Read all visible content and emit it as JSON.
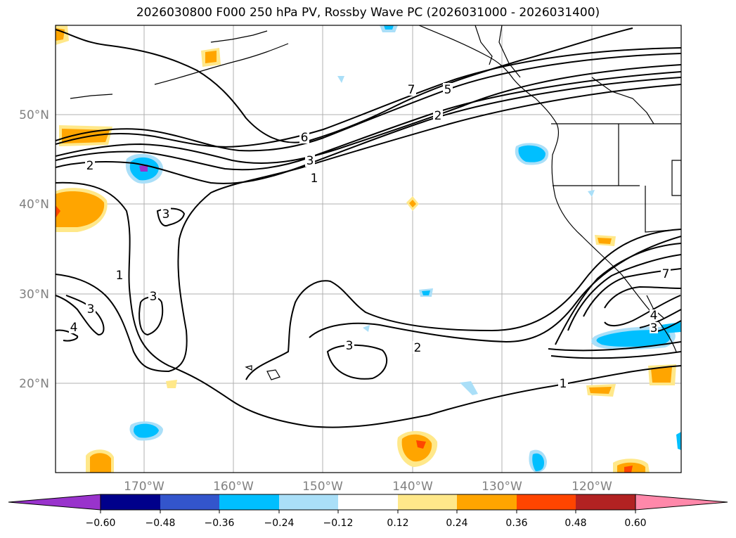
{
  "title": "2026030800 F000 250 hPa PV, Rossby Wave PC (2026031000 - 2026031400)",
  "lat_labels": [
    "50°N",
    "40°N",
    "30°N",
    "20°N"
  ],
  "lon_labels": [
    "170°W",
    "160°W",
    "150°W",
    "140°W",
    "130°W",
    "120°W"
  ],
  "contour_labels": [
    "7",
    "5",
    "6",
    "2",
    "3",
    "1",
    "2",
    "3",
    "1",
    "3",
    "3",
    "4",
    "3",
    "2",
    "1",
    "7",
    "4",
    "3"
  ],
  "colorbar": {
    "tick_labels": [
      "−0.60",
      "−0.48",
      "−0.36",
      "−0.24",
      "−0.12",
      "0.12",
      "0.24",
      "0.36",
      "0.48",
      "0.60"
    ],
    "colors": [
      "#9933cc",
      "#00008b",
      "#3355cc",
      "#00bfff",
      "#aadff8",
      "#ffffff",
      "#ffe88a",
      "#ffa500",
      "#ff4500",
      "#b22222",
      "#ff88aa"
    ]
  },
  "anomaly_colors": {
    "pos_light": "#ffe88a",
    "pos": "#ffa500",
    "pos_strong": "#ff4500",
    "neg_light": "#aadff8",
    "neg": "#00bfff",
    "neg_strong": "#9933cc"
  }
}
